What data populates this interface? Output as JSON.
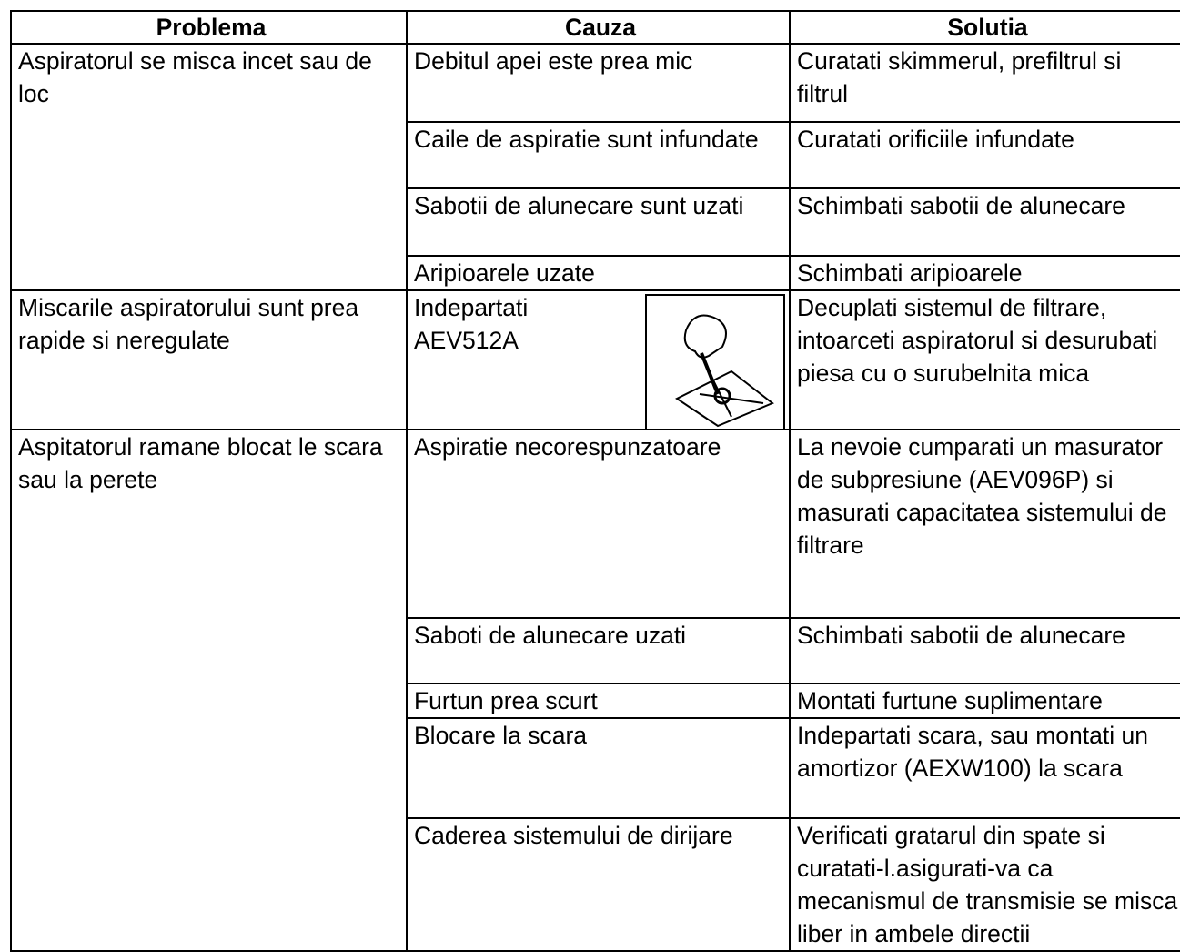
{
  "table": {
    "header": [
      "Problema",
      "Cauza",
      "Solutia"
    ],
    "groups": [
      {
        "problem": "Aspiratorul se misca incet sau de loc",
        "rows": [
          {
            "cause": "Debitul apei este prea mic",
            "solution": "Curatati skimmerul, prefiltrul si filtrul"
          },
          {
            "cause": "Caile de aspiratie sunt infundate",
            "solution": "Curatati orificiile infundate"
          },
          {
            "cause": "Sabotii de alunecare sunt uzati",
            "solution": "Schimbati sabotii de alunecare"
          },
          {
            "cause": "Aripioarele uzate",
            "solution": "Schimbati aripioarele"
          }
        ]
      },
      {
        "problem": "Miscarile aspiratorului sunt prea rapide si neregulate",
        "rows": [
          {
            "cause": "Indepartati AEV512A",
            "solution": "Decuplati sistemul de filtrare, intoarceti aspiratorul si desurubati piesa cu o surubelnita mica"
          }
        ]
      },
      {
        "problem": "Aspitatorul ramane blocat le scara sau la perete",
        "rows": [
          {
            "cause": "Aspiratie necorespunzatoare",
            "solution": "La nevoie cumparati un masurator de subpresiune (AEV096P) si masurati capacitatea sistemului de filtrare"
          },
          {
            "cause": "Saboti de alunecare uzati",
            "solution": "Schimbati sabotii de alunecare"
          },
          {
            "cause": "Furtun prea scurt",
            "solution": "Montati furtune suplimentare"
          },
          {
            "cause": "Blocare la scara",
            "solution": "Indepartati scara, sau montati un amortizor (AEXW100) la scara"
          },
          {
            "cause": "Caderea sistemului de dirijare",
            "solution": "Verificati gratarul din spate si curatati-l.asigurati-va ca mecanismul de transmisie se misca liber in ambele directii"
          }
        ]
      }
    ]
  }
}
